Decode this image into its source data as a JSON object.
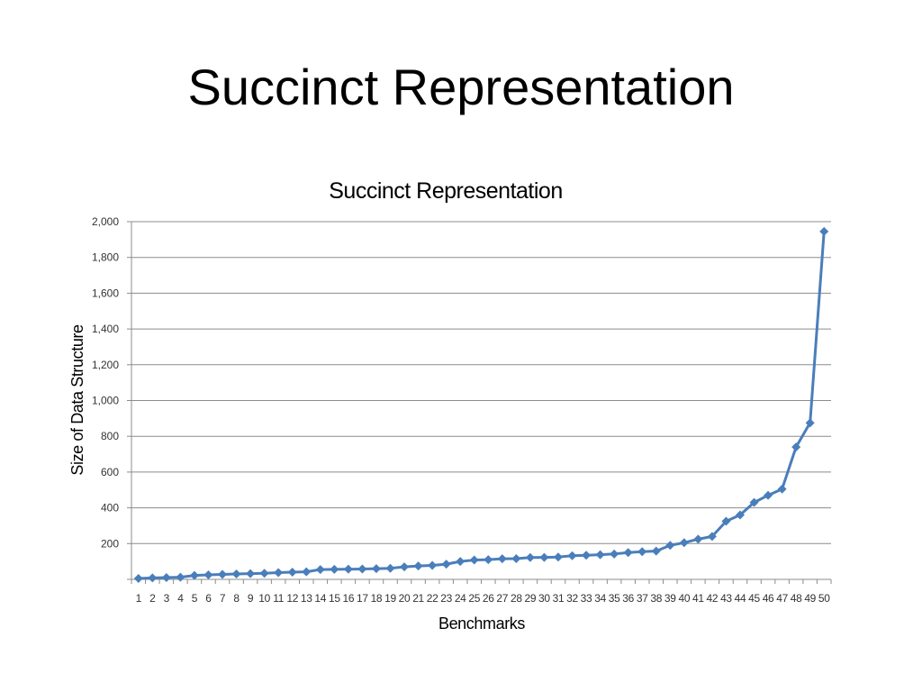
{
  "slide": {
    "title": "Succinct Representation"
  },
  "colors": {
    "series": "#4a7ebb",
    "grid": "#8c8c8c",
    "axis": "#8c8c8c"
  },
  "chart_data": {
    "type": "line",
    "title": "Succinct Representation",
    "xlabel": "Benchmarks",
    "ylabel": "Size of Data Structure",
    "ylim": [
      0,
      2000
    ],
    "yticks": [
      0,
      200,
      400,
      600,
      800,
      1000,
      1200,
      1400,
      1600,
      1800,
      2000
    ],
    "ytick_labels": [
      "",
      "200",
      "400",
      "600",
      "800",
      "1,000",
      "1,200",
      "1,400",
      "1,600",
      "1,800",
      "2,000"
    ],
    "grid": true,
    "legend": "none",
    "markers": "diamond",
    "x": [
      "1",
      "2",
      "3",
      "4",
      "5",
      "6",
      "7",
      "8",
      "9",
      "10",
      "11",
      "12",
      "13",
      "14",
      "15",
      "16",
      "17",
      "18",
      "19",
      "20",
      "21",
      "22",
      "23",
      "24",
      "25",
      "26",
      "27",
      "28",
      "29",
      "30",
      "31",
      "32",
      "33",
      "34",
      "35",
      "36",
      "37",
      "38",
      "39",
      "40",
      "41",
      "42",
      "43",
      "44",
      "45",
      "46",
      "47",
      "48",
      "49",
      "50"
    ],
    "series": [
      {
        "values": [
          5,
          8,
          10,
          12,
          22,
          25,
          28,
          30,
          32,
          34,
          38,
          40,
          42,
          55,
          56,
          57,
          58,
          60,
          62,
          70,
          75,
          78,
          85,
          100,
          108,
          110,
          115,
          116,
          122,
          123,
          125,
          132,
          135,
          138,
          142,
          150,
          155,
          158,
          190,
          205,
          225,
          240,
          325,
          360,
          430,
          470,
          505,
          740,
          875,
          1945
        ]
      }
    ]
  }
}
